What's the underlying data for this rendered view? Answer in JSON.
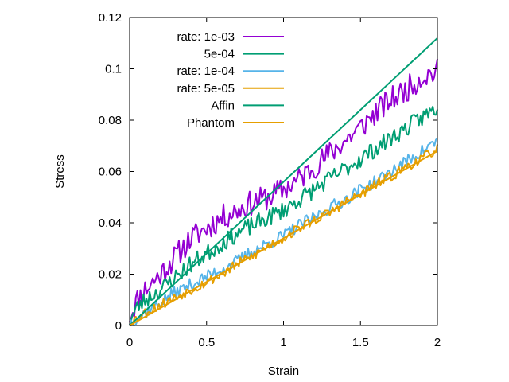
{
  "chart_data": {
    "type": "line",
    "title": "",
    "xlabel": "Strain",
    "ylabel": "Stress",
    "xlim": [
      0,
      2
    ],
    "ylim": [
      0,
      0.12
    ],
    "x_ticks": [
      0,
      0.5,
      1,
      1.5,
      2
    ],
    "x_tick_labels": [
      "0",
      "0.5",
      "1",
      "1.5",
      "2"
    ],
    "y_ticks": [
      0,
      0.02,
      0.04,
      0.06,
      0.08,
      0.1,
      0.12
    ],
    "y_tick_labels": [
      "0",
      "0.02",
      "0.04",
      "0.06",
      "0.08",
      "0.1",
      "0.12"
    ],
    "grid": false,
    "legend_position": "top-left",
    "series": [
      {
        "name": "rate: 1e-03",
        "color": "#9400d3",
        "style": "noisy",
        "amplitude": 0.005,
        "seed": 11,
        "x": [
          0,
          0.05,
          0.1,
          0.2,
          0.3,
          0.4,
          0.5,
          0.6,
          0.7,
          0.8,
          0.9,
          1.0,
          1.1,
          1.2,
          1.3,
          1.4,
          1.5,
          1.6,
          1.7,
          1.8,
          1.9,
          2.0
        ],
        "y": [
          0.004,
          0.01,
          0.014,
          0.02,
          0.027,
          0.034,
          0.038,
          0.042,
          0.045,
          0.048,
          0.05,
          0.053,
          0.057,
          0.062,
          0.067,
          0.072,
          0.077,
          0.083,
          0.088,
          0.092,
          0.097,
          0.099
        ]
      },
      {
        "name": "5e-04",
        "color": "#009e73",
        "style": "noisy",
        "amplitude": 0.0035,
        "seed": 23,
        "x": [
          0,
          0.05,
          0.1,
          0.2,
          0.3,
          0.4,
          0.5,
          0.6,
          0.7,
          0.8,
          0.9,
          1.0,
          1.1,
          1.2,
          1.3,
          1.4,
          1.5,
          1.6,
          1.7,
          1.8,
          1.9,
          2.0
        ],
        "y": [
          0.002,
          0.007,
          0.01,
          0.014,
          0.019,
          0.024,
          0.028,
          0.032,
          0.036,
          0.039,
          0.042,
          0.045,
          0.049,
          0.053,
          0.057,
          0.061,
          0.065,
          0.069,
          0.073,
          0.077,
          0.081,
          0.085
        ]
      },
      {
        "name": "rate: 1e-04",
        "color": "#56b4e9",
        "style": "noisy",
        "amplitude": 0.0025,
        "seed": 37,
        "x": [
          0,
          0.05,
          0.1,
          0.2,
          0.3,
          0.4,
          0.5,
          0.6,
          0.7,
          0.8,
          0.9,
          1.0,
          1.1,
          1.2,
          1.3,
          1.4,
          1.5,
          1.6,
          1.7,
          1.8,
          1.9,
          2.0
        ],
        "y": [
          0.001,
          0.003,
          0.005,
          0.009,
          0.013,
          0.016,
          0.019,
          0.022,
          0.025,
          0.029,
          0.032,
          0.035,
          0.039,
          0.042,
          0.046,
          0.049,
          0.053,
          0.056,
          0.06,
          0.064,
          0.068,
          0.072
        ]
      },
      {
        "name": "rate: 5e-05",
        "color": "#e69f00",
        "style": "noisy",
        "amplitude": 0.002,
        "seed": 53,
        "x": [
          0,
          0.05,
          0.1,
          0.2,
          0.3,
          0.4,
          0.5,
          0.6,
          0.7,
          0.8,
          0.9,
          1.0,
          1.1,
          1.2,
          1.3,
          1.4,
          1.5,
          1.6,
          1.7,
          1.8,
          1.9,
          2.0
        ],
        "y": [
          0.001,
          0.003,
          0.005,
          0.008,
          0.011,
          0.014,
          0.017,
          0.02,
          0.024,
          0.027,
          0.031,
          0.034,
          0.038,
          0.041,
          0.044,
          0.048,
          0.051,
          0.055,
          0.058,
          0.062,
          0.065,
          0.069
        ]
      },
      {
        "name": "Affin",
        "color": "#009e73",
        "style": "smooth",
        "x": [
          0,
          2
        ],
        "y": [
          0,
          0.112
        ]
      },
      {
        "name": "Phantom",
        "color": "#e69f00",
        "style": "smooth",
        "x": [
          0,
          2
        ],
        "y": [
          0,
          0.068
        ]
      }
    ]
  }
}
